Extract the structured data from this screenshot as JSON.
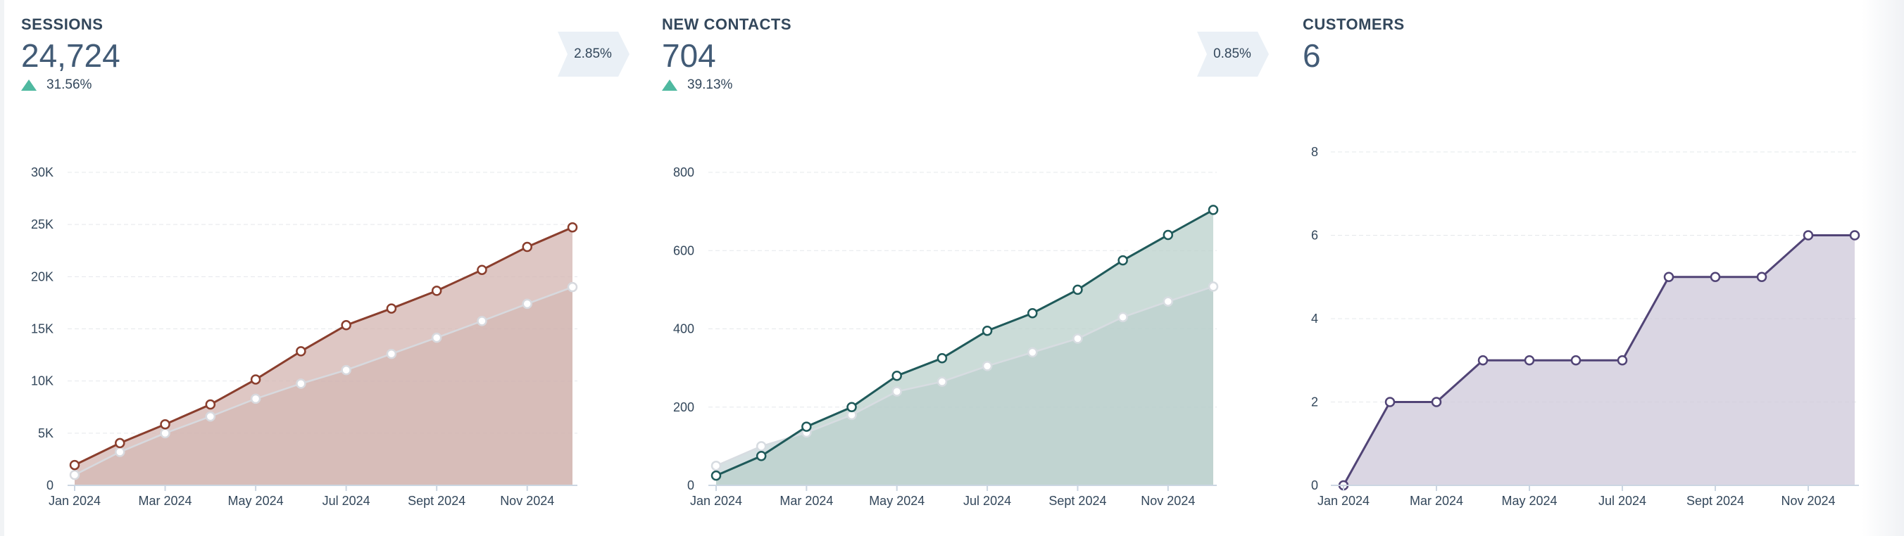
{
  "cards": [
    {
      "title": "SESSIONS",
      "value": "24,724",
      "change": "31.56%",
      "change_icon": "triangle-up-icon",
      "badge": "2.85%"
    },
    {
      "title": "NEW CONTACTS",
      "value": "704",
      "change": "39.13%",
      "change_icon": "triangle-up-icon",
      "badge": "0.85%"
    },
    {
      "title": "CUSTOMERS",
      "value": "6"
    }
  ],
  "chart_data": [
    {
      "type": "area",
      "x": [
        "Jan 2024",
        "Feb 2024",
        "Mar 2024",
        "Apr 2024",
        "May 2024",
        "Jun 2024",
        "Jul 2024",
        "Aug 2024",
        "Sept 2024",
        "Oct 2024",
        "Nov 2024",
        "Dec 2024"
      ],
      "x_tick_labels": [
        "Jan 2024",
        "Mar 2024",
        "May 2024",
        "Jul 2024",
        "Sept 2024",
        "Nov 2024"
      ],
      "y_tick_labels": [
        "0",
        "5K",
        "10K",
        "15K",
        "20K",
        "25K",
        "30K"
      ],
      "ylim": [
        0,
        30000
      ],
      "grid": true,
      "series": [
        {
          "values": [
            1950,
            4050,
            5850,
            7750,
            10150,
            12850,
            15350,
            16950,
            18650,
            20650,
            22850,
            24724
          ],
          "color": "#8a3e2d",
          "fill": "#d3b4b0"
        },
        {
          "values": [
            1000,
            3200,
            5000,
            6600,
            8300,
            9750,
            11050,
            12600,
            14150,
            15750,
            17400,
            19000
          ],
          "color": "#d7d9de",
          "fill": "#c8b3b0"
        }
      ]
    },
    {
      "type": "area",
      "x": [
        "Jan 2024",
        "Feb 2024",
        "Mar 2024",
        "Apr 2024",
        "May 2024",
        "Jun 2024",
        "Jul 2024",
        "Aug 2024",
        "Sept 2024",
        "Oct 2024",
        "Nov 2024",
        "Dec 2024"
      ],
      "x_tick_labels": [
        "Jan 2024",
        "Mar 2024",
        "May 2024",
        "Jul 2024",
        "Sept 2024",
        "Nov 2024"
      ],
      "y_tick_labels": [
        "0",
        "200",
        "400",
        "600",
        "800"
      ],
      "ylim": [
        0,
        800
      ],
      "grid": true,
      "series": [
        {
          "values": [
            25,
            75,
            150,
            200,
            280,
            325,
            395,
            440,
            500,
            575,
            640,
            704
          ],
          "color": "#1f5a5a",
          "fill": "#b9d0cb"
        },
        {
          "values": [
            50,
            100,
            135,
            180,
            240,
            265,
            305,
            340,
            375,
            430,
            470,
            508
          ],
          "color": "#d7dce1",
          "fill": "#b3c6cb"
        }
      ]
    },
    {
      "type": "area",
      "x": [
        "Jan 2024",
        "Feb 2024",
        "Mar 2024",
        "Apr 2024",
        "May 2024",
        "Jun 2024",
        "Jul 2024",
        "Aug 2024",
        "Sept 2024",
        "Oct 2024",
        "Nov 2024",
        "Dec 2024"
      ],
      "x_tick_labels": [
        "Jan 2024",
        "Mar 2024",
        "May 2024",
        "Jul 2024",
        "Sept 2024",
        "Nov 2024"
      ],
      "y_tick_labels": [
        "0",
        "2",
        "4",
        "6",
        "8"
      ],
      "ylim": [
        0,
        8
      ],
      "grid": true,
      "series": [
        {
          "values": [
            0,
            2,
            2,
            3,
            3,
            3,
            3,
            5,
            5,
            5,
            6,
            6
          ],
          "color": "#514476",
          "fill": "#cdc8da"
        }
      ]
    }
  ]
}
